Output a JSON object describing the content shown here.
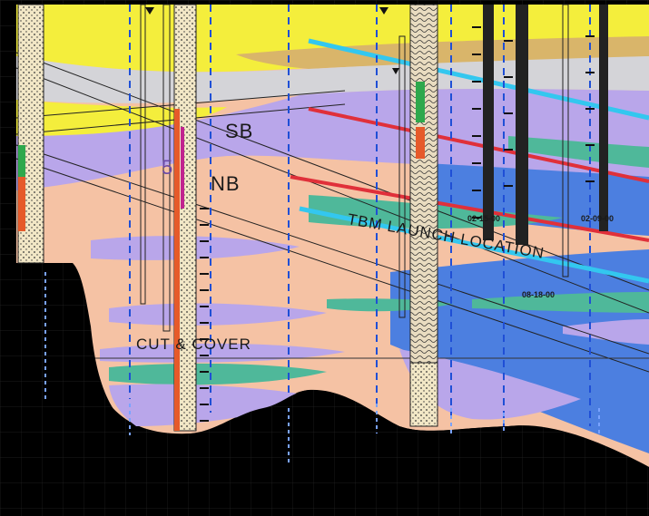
{
  "section_labels": {
    "sb": "SB",
    "nb": "NB",
    "nb_prefix": "5",
    "tbm": "TBM LAUNCH LOCATION",
    "cut_cover": "CUT & COVER"
  },
  "dates": {
    "d1": "02-15-00",
    "d2": "02-09-00",
    "d3": "08-18-00"
  },
  "colors": {
    "background": "#000000",
    "fill_yellow": "#f4ee3c",
    "fill_tan": "#d9b56a",
    "fill_gray": "#d4d4d8",
    "fill_lavender": "#b9a6ea",
    "fill_peach": "#f5c2a4",
    "fill_teal": "#4fb89a",
    "fill_blue": "#4c7fe0",
    "dashed_blue": "#1f4fd6",
    "red_line": "#e0303a",
    "cyan_line": "#33c7ef"
  },
  "icons": {
    "boring_log": "boring-log-column",
    "water_level": "water-level-triangle-icon"
  }
}
